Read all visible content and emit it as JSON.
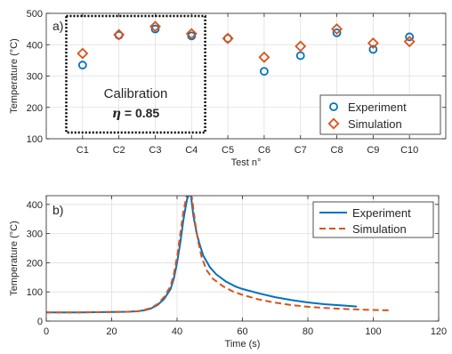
{
  "chart_data": [
    {
      "type": "scatter",
      "panel_label": "a)",
      "ylabel": "Temperature (°C)",
      "xlabel": "Test n°",
      "ylim": [
        100,
        500
      ],
      "yticks": [
        100,
        200,
        300,
        400,
        500
      ],
      "grid": true,
      "categories": [
        "C1",
        "C2",
        "C3",
        "C4",
        "C5",
        "C6",
        "C7",
        "C8",
        "C9",
        "C10"
      ],
      "series": [
        {
          "name": "Experiment",
          "marker": "circle",
          "color": "#0072BD",
          "values": [
            335,
            430,
            450,
            428,
            420,
            315,
            365,
            438,
            385,
            425
          ]
        },
        {
          "name": "Simulation",
          "marker": "diamond",
          "color": "#D95319",
          "values": [
            372,
            432,
            458,
            435,
            420,
            360,
            395,
            450,
            405,
            410
          ]
        }
      ],
      "legend": "bottom-right",
      "annotation": {
        "box_categories": [
          "C1",
          "C4"
        ],
        "title": "Calibration",
        "eta_symbol": "η",
        "eta_text": " = 0.85"
      }
    },
    {
      "type": "line",
      "panel_label": "b)",
      "ylabel": "Temperature (°C)",
      "xlabel": "Time (s)",
      "xlim": [
        0,
        120
      ],
      "xticks": [
        0,
        20,
        40,
        60,
        80,
        100,
        120
      ],
      "ylim": [
        0,
        430
      ],
      "yticks": [
        0,
        100,
        200,
        300,
        400
      ],
      "grid": true,
      "legend": "top-right",
      "series": [
        {
          "name": "Experiment",
          "style": "solid",
          "color": "#0072BD",
          "x": [
            0,
            10,
            20,
            25,
            28,
            30,
            32,
            34,
            36,
            38,
            39,
            40,
            41,
            42,
            43,
            43.8,
            44.3,
            45,
            46,
            47,
            48,
            50,
            52,
            55,
            58,
            60,
            65,
            70,
            75,
            80,
            85,
            90,
            95
          ],
          "y": [
            30,
            30,
            31,
            32,
            34,
            37,
            43,
            55,
            75,
            110,
            145,
            200,
            270,
            350,
            415,
            440,
            425,
            360,
            300,
            260,
            225,
            185,
            160,
            135,
            118,
            110,
            95,
            82,
            72,
            64,
            58,
            54,
            50
          ]
        },
        {
          "name": "Simulation",
          "style": "dashed",
          "color": "#D95319",
          "x": [
            0,
            10,
            20,
            25,
            28,
            30,
            32,
            34,
            36,
            38,
            39,
            40,
            41,
            42,
            43,
            44,
            44.6,
            45.5,
            46.5,
            47.5,
            49,
            51,
            54,
            57,
            60,
            65,
            70,
            75,
            80,
            85,
            90,
            95,
            100,
            105
          ],
          "y": [
            30,
            30,
            31,
            32,
            34,
            38,
            45,
            58,
            82,
            120,
            160,
            220,
            300,
            380,
            430,
            445,
            420,
            340,
            270,
            220,
            175,
            145,
            120,
            102,
            90,
            74,
            63,
            55,
            49,
            45,
            42,
            40,
            38,
            37
          ]
        }
      ]
    }
  ]
}
